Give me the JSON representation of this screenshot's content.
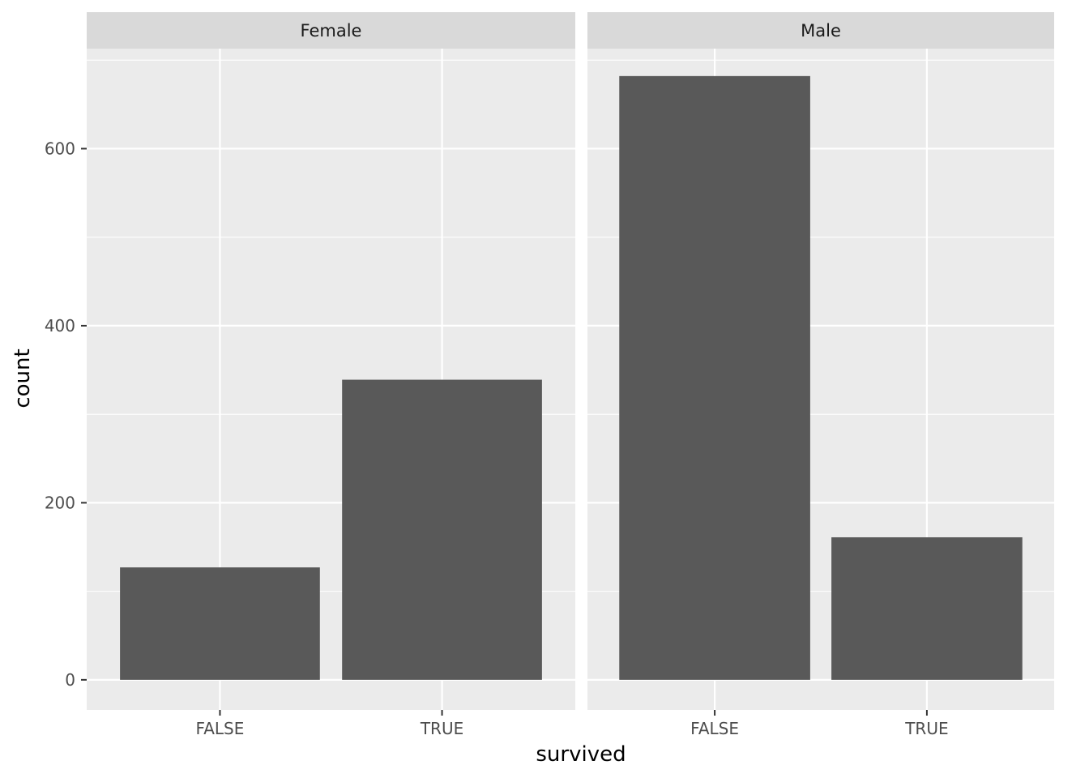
{
  "chart_data": {
    "type": "bar",
    "xlabel": "survived",
    "ylabel": "count",
    "ylim": [
      -34,
      713
    ],
    "yticks": [
      0,
      200,
      400,
      600
    ],
    "categories": [
      "FALSE",
      "TRUE"
    ],
    "panels": [
      {
        "name": "Female",
        "values": [
          127,
          339
        ]
      },
      {
        "name": "Male",
        "values": [
          682,
          161
        ]
      }
    ],
    "grid": true,
    "colors": {
      "bar": "#595959",
      "panel_background": "#ebebeb",
      "strip_background": "#d9d9d9",
      "grid": "#ffffff"
    }
  }
}
